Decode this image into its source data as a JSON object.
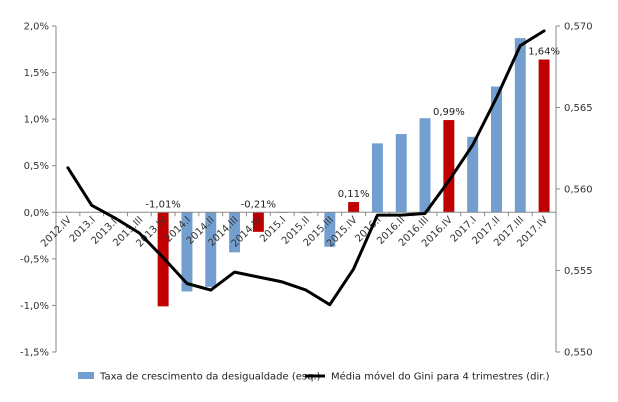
{
  "chart_data": {
    "type": "bar",
    "categories": [
      "2012.IV",
      "2013.I",
      "2013.II",
      "2013.III",
      "2013.IV",
      "2014.I",
      "2014.II",
      "2014.III",
      "2014.IV",
      "2015.I",
      "2015.II",
      "2015.III",
      "2015.IV",
      "2016.I",
      "2016.II",
      "2016.III",
      "2016.IV",
      "2017.I",
      "2017.II",
      "2017.III",
      "2017.IV"
    ],
    "series": [
      {
        "name": "Taxa de crescimento da desigualdade (esq.)",
        "kind": "bar",
        "axis": "left",
        "unit": "%",
        "values": [
          null,
          null,
          null,
          null,
          -1.01,
          -0.85,
          -0.8,
          -0.43,
          -0.21,
          0.0,
          -0.01,
          -0.37,
          0.11,
          0.74,
          0.84,
          1.01,
          0.99,
          0.81,
          1.35,
          1.87,
          1.64
        ],
        "colors": [
          "#729fcf",
          "#729fcf",
          "#729fcf",
          "#729fcf",
          "#c00000",
          "#729fcf",
          "#729fcf",
          "#729fcf",
          "#c00000",
          "#729fcf",
          "#729fcf",
          "#729fcf",
          "#c00000",
          "#729fcf",
          "#729fcf",
          "#729fcf",
          "#c00000",
          "#729fcf",
          "#729fcf",
          "#729fcf",
          "#c00000"
        ]
      },
      {
        "name": "Média móvel do Gini para 4 trimestres (dir.)",
        "kind": "line",
        "axis": "right",
        "color": "#000000",
        "values": [
          0.5613,
          0.559,
          0.5582,
          0.5573,
          0.5558,
          0.5542,
          0.5538,
          0.5549,
          0.5546,
          0.5543,
          0.5538,
          0.5529,
          0.5551,
          0.5584,
          0.5584,
          0.5585,
          0.5605,
          0.5627,
          0.5656,
          0.5688,
          0.5697
        ]
      }
    ],
    "data_labels": [
      {
        "index": 4,
        "text": "-1,01%"
      },
      {
        "index": 8,
        "text": "-0,21%"
      },
      {
        "index": 12,
        "text": "0,11%"
      },
      {
        "index": 16,
        "text": "0,99%"
      },
      {
        "index": 20,
        "text": "1,64%"
      }
    ],
    "y_left": {
      "min": -1.5,
      "max": 2.0,
      "ticks": [
        2.0,
        1.5,
        1.0,
        0.5,
        0.0,
        -0.5,
        -1.0,
        -1.5
      ],
      "tick_labels": [
        "2,0%",
        "1,5%",
        "1,0%",
        "0,5%",
        "0,0%",
        "-0,5%",
        "-1,0%",
        "-1,5%"
      ]
    },
    "y_right": {
      "min": 0.55,
      "max": 0.57,
      "ticks": [
        0.57,
        0.565,
        0.56,
        0.555,
        0.55
      ],
      "tick_labels": [
        "0,570",
        "0,565",
        "0,560",
        "0,555",
        "0,550"
      ]
    },
    "grid": false,
    "legend_position": "bottom",
    "title": "",
    "xlabel": "",
    "ylabel": ""
  }
}
